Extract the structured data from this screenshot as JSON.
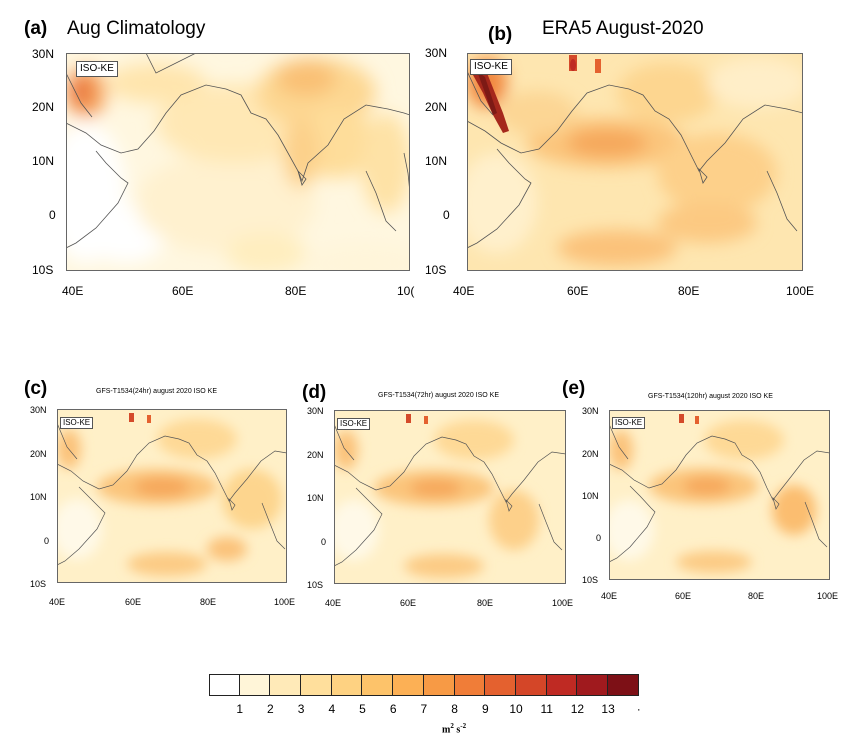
{
  "panels": [
    {
      "id": "a",
      "letter": "(a)",
      "title": "Aug Climatology",
      "legend_label": "ISO-KE",
      "lat_ticks": [
        "30N",
        "20N",
        "10N",
        "0",
        "10S"
      ],
      "lon_ticks": [
        "40E",
        "60E",
        "80E",
        "10("
      ]
    },
    {
      "id": "b",
      "letter": "(b)",
      "title": "ERA5 August-2020",
      "legend_label": "ISO-KE",
      "lat_ticks": [
        "30N",
        "20N",
        "10N",
        "0",
        "10S"
      ],
      "lon_ticks": [
        "40E",
        "60E",
        "80E",
        "100E"
      ]
    },
    {
      "id": "c",
      "letter": "(c)",
      "title": "GFS-T1534(24hr) august 2020 ISO KE",
      "legend_label": "ISO-KE",
      "lat_ticks": [
        "30N",
        "20N",
        "10N",
        "0",
        "10S"
      ],
      "lon_ticks": [
        "40E",
        "60E",
        "80E",
        "100E"
      ]
    },
    {
      "id": "d",
      "letter": "(d)",
      "title": "GFS-T1534(72hr) august 2020 ISO KE",
      "legend_label": "ISO-KE",
      "lat_ticks": [
        "30N",
        "20N",
        "10N",
        "0",
        "10S"
      ],
      "lon_ticks": [
        "40E",
        "60E",
        "80E",
        "100E"
      ]
    },
    {
      "id": "e",
      "letter": "(e)",
      "title": "GFS-T1534(120hr) august 2020 ISO KE",
      "legend_label": "ISO-KE",
      "lat_ticks": [
        "30N",
        "20N",
        "10N",
        "0",
        "10S"
      ],
      "lon_ticks": [
        "40E",
        "60E",
        "80E",
        "100E"
      ]
    }
  ],
  "colorbar": {
    "labels": [
      "1",
      "2",
      "3",
      "4",
      "5",
      "6",
      "7",
      "8",
      "9",
      "10",
      "11",
      "12",
      "13",
      "·"
    ],
    "colors": [
      "#ffffff",
      "#fff5d8",
      "#ffeab8",
      "#ffdf9c",
      "#fed282",
      "#fdc36a",
      "#fcb055",
      "#f79a45",
      "#f07d38",
      "#e4612f",
      "#d44628",
      "#bf2a23",
      "#a01a1e",
      "#7d1016"
    ],
    "unit_base": "m",
    "unit_exp1": "2",
    "unit_mid": " s",
    "unit_exp2": "-2"
  }
}
